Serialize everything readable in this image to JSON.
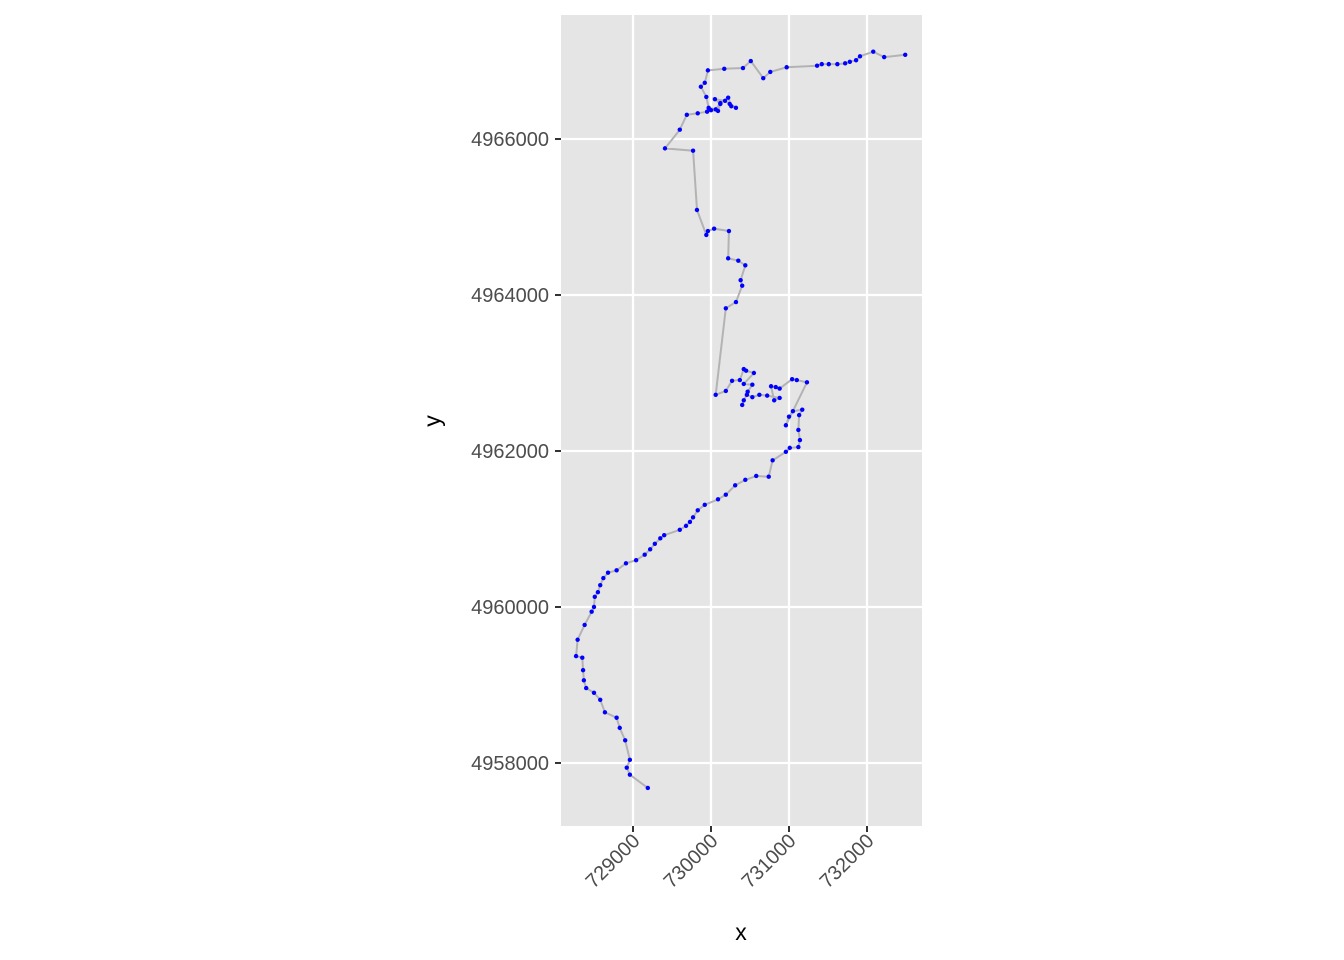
{
  "chart_data": {
    "type": "scatter",
    "x_label": "x",
    "y_label": "y",
    "xlim": [
      728077,
      732705
    ],
    "ylim": [
      4957192,
      4967590
    ],
    "xticks": [
      729000,
      730000,
      731000,
      732000
    ],
    "yticks": [
      4958000,
      4960000,
      4962000,
      4964000,
      4966000
    ],
    "grid": true,
    "panel_color": "#e5e5e5",
    "line_color": "#b3b3b3",
    "point_color": "#0000ff",
    "x": [
      729190,
      728960,
      728920,
      728960,
      728900,
      728830,
      728790,
      728640,
      728580,
      728500,
      728400,
      728370,
      728360,
      728350,
      728270,
      728290,
      728380,
      728470,
      728500,
      728510,
      728550,
      728580,
      728620,
      728680,
      728790,
      728910,
      729040,
      729150,
      729220,
      729280,
      729350,
      729400,
      729600,
      729680,
      729730,
      729770,
      729830,
      729920,
      730090,
      730190,
      730310,
      730440,
      730580,
      730740,
      730790,
      730960,
      731010,
      731120,
      731140,
      731120,
      731130,
      731170,
      731050,
      731000,
      730960,
      731230,
      731100,
      731040,
      730880,
      730830,
      730770,
      730810,
      730880,
      730720,
      730620,
      730530,
      730460,
      730420,
      730400,
      730470,
      730530,
      730420,
      730550,
      730450,
      730420,
      730370,
      730270,
      730190,
      730060,
      730190,
      730320,
      730400,
      730380,
      730440,
      730350,
      730220,
      730230,
      730040,
      729960,
      729940,
      729820,
      729770,
      729410,
      729600,
      729690,
      729830,
      729950,
      730000,
      730090,
      730120,
      730050,
      730180,
      730240,
      730320,
      730260,
      730220,
      730120,
      730060,
      729970,
      729940,
      729870,
      729920,
      729960,
      730170,
      730410,
      730510,
      730670,
      730760,
      730970,
      731360,
      731420,
      731510,
      731620,
      731720,
      731780,
      731860,
      731910,
      732080,
      732220,
      732490
    ],
    "y": [
      4957680,
      4957850,
      4957940,
      4958040,
      4958290,
      4958450,
      4958580,
      4958650,
      4958810,
      4958900,
      4958960,
      4959060,
      4959190,
      4959350,
      4959370,
      4959580,
      4959770,
      4959940,
      4960000,
      4960130,
      4960190,
      4960280,
      4960370,
      4960440,
      4960470,
      4960560,
      4960600,
      4960670,
      4960740,
      4960810,
      4960880,
      4960920,
      4960990,
      4961040,
      4961090,
      4961150,
      4961240,
      4961310,
      4961380,
      4961440,
      4961560,
      4961630,
      4961680,
      4961670,
      4961880,
      4961990,
      4962040,
      4962050,
      4962140,
      4962270,
      4962460,
      4962530,
      4962510,
      4962440,
      4962330,
      4962880,
      4962910,
      4962920,
      4962800,
      4962820,
      4962830,
      4962650,
      4962680,
      4962710,
      4962720,
      4962690,
      4962720,
      4962650,
      4962590,
      4962760,
      4962850,
      4962860,
      4963000,
      4963030,
      4963050,
      4962910,
      4962900,
      4962770,
      4962720,
      4963830,
      4963910,
      4964120,
      4964190,
      4964380,
      4964440,
      4964470,
      4964820,
      4964850,
      4964820,
      4964770,
      4965090,
      4965850,
      4965880,
      4966120,
      4966310,
      4966330,
      4966350,
      4966370,
      4966360,
      4966450,
      4966510,
      4966490,
      4966450,
      4966400,
      4966420,
      4966530,
      4966460,
      4966380,
      4966400,
      4966540,
      4966670,
      4966720,
      4966880,
      4966900,
      4966910,
      4967000,
      4966780,
      4966860,
      4966920,
      4966940,
      4966960,
      4966960,
      4966960,
      4966970,
      4966990,
      4967010,
      4967060,
      4967120,
      4967050,
      4967080
    ]
  }
}
